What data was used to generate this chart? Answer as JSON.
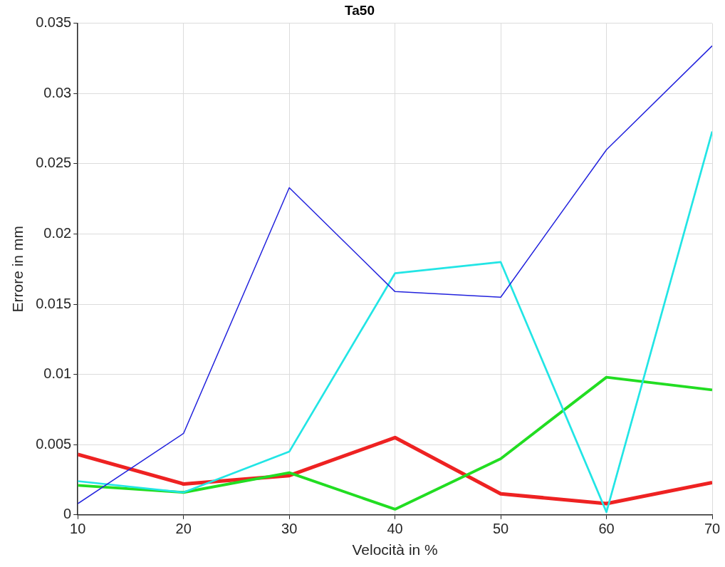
{
  "chart_data": {
    "type": "line",
    "title": "Ta50",
    "xlabel": "Velocità in %",
    "ylabel": "Errore in mm",
    "x": [
      10,
      20,
      30,
      40,
      50,
      60,
      70
    ],
    "series": [
      {
        "color": "#2222dd",
        "values": [
          0.0008,
          0.0058,
          0.0233,
          0.0159,
          0.0155,
          0.026,
          0.0334
        ]
      },
      {
        "color": "#22e5e5",
        "values": [
          0.0024,
          0.0016,
          0.0045,
          0.0172,
          0.018,
          0.0002,
          0.0273
        ]
      },
      {
        "color": "#22dd22",
        "values": [
          0.0021,
          0.0016,
          0.003,
          0.0004,
          0.004,
          0.0098,
          0.0089
        ]
      },
      {
        "color": "#ee2222",
        "values": [
          0.0043,
          0.0022,
          0.0028,
          0.0055,
          0.0015,
          0.0008,
          0.0023
        ]
      }
    ],
    "xlim": [
      10,
      70
    ],
    "xticks": [
      10,
      20,
      30,
      40,
      50,
      60,
      70
    ],
    "ylim": [
      0,
      0.035
    ],
    "yticks": [
      0,
      0.005,
      0.01,
      0.015,
      0.02,
      0.025,
      0.03,
      0.035
    ],
    "grid": true,
    "legend": false,
    "marker": "none",
    "line_style": "solid"
  }
}
